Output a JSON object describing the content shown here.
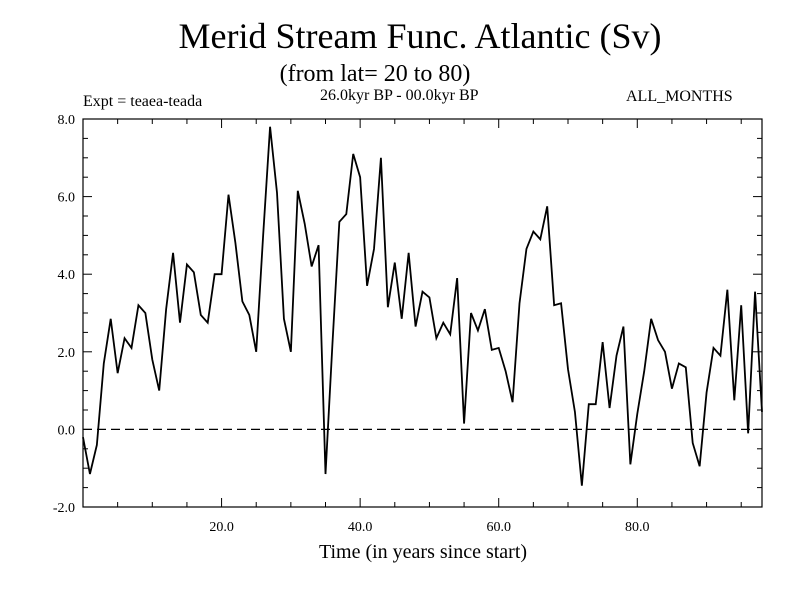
{
  "chart_data": {
    "type": "line",
    "title": "Merid Stream Func. Atlantic (Sv)",
    "subtitle": "(from lat= 20 to 80)",
    "experiment": "Expt = teaea-teada",
    "time_range": "26.0kyr BP - 00.0kyr BP",
    "months": "ALL_MONTHS",
    "xlabel": "Time (in years since start)",
    "ylabel": "",
    "xlim": [
      0,
      98
    ],
    "ylim": [
      -2.0,
      8.0
    ],
    "xticks": [
      20,
      40,
      60,
      80
    ],
    "xtick_labels": [
      "20.0",
      "40.0",
      "60.0",
      "80.0"
    ],
    "yticks": [
      -2.0,
      0.0,
      2.0,
      4.0,
      6.0,
      8.0
    ],
    "ytick_labels": [
      "-2.0",
      "0.0",
      "2.0",
      "4.0",
      "6.0",
      "8.0"
    ],
    "reference_line": 0.0,
    "series": [
      {
        "name": "Merid Stream Func. Atlantic",
        "x": [
          0,
          1,
          2,
          3,
          4,
          5,
          6,
          7,
          8,
          9,
          10,
          11,
          12,
          13,
          14,
          15,
          16,
          17,
          18,
          19,
          20,
          21,
          22,
          23,
          24,
          25,
          26,
          27,
          28,
          29,
          30,
          31,
          32,
          33,
          34,
          35,
          36,
          37,
          38,
          39,
          40,
          41,
          42,
          43,
          44,
          45,
          46,
          47,
          48,
          49,
          50,
          51,
          52,
          53,
          54,
          55,
          56,
          57,
          58,
          59,
          60,
          61,
          62,
          63,
          64,
          65,
          66,
          67,
          68,
          69,
          70,
          71,
          72,
          73,
          74,
          75,
          76,
          77,
          78,
          79,
          80,
          81,
          82,
          83,
          84,
          85,
          86,
          87,
          88,
          89,
          90,
          91,
          92,
          93,
          94,
          95,
          96,
          97,
          98
        ],
        "values": [
          -0.2,
          -1.15,
          -0.4,
          1.7,
          2.85,
          1.45,
          2.35,
          2.1,
          3.2,
          3.0,
          1.8,
          1.0,
          3.1,
          4.55,
          2.75,
          4.25,
          4.05,
          2.95,
          2.75,
          4.0,
          4.0,
          6.05,
          4.8,
          3.3,
          2.95,
          2.0,
          5.0,
          7.8,
          6.1,
          2.85,
          2.0,
          6.15,
          5.3,
          4.2,
          4.75,
          -1.15,
          2.2,
          5.35,
          5.55,
          7.1,
          6.5,
          3.7,
          4.65,
          7.0,
          3.15,
          4.3,
          2.85,
          4.55,
          2.65,
          3.55,
          3.4,
          2.35,
          2.75,
          2.45,
          3.9,
          0.15,
          3.0,
          2.55,
          3.1,
          2.05,
          2.1,
          1.5,
          0.7,
          3.25,
          4.65,
          5.1,
          4.9,
          5.75,
          3.2,
          3.25,
          1.55,
          0.45,
          -1.45,
          0.65,
          0.65,
          2.25,
          0.55,
          1.9,
          2.65,
          -0.9,
          0.4,
          1.5,
          2.85,
          2.3,
          2.0,
          1.05,
          1.7,
          1.6,
          -0.35,
          -0.95,
          0.95,
          2.1,
          1.9,
          3.6,
          0.75,
          3.2,
          -0.1,
          3.55,
          0.45
        ]
      }
    ]
  }
}
